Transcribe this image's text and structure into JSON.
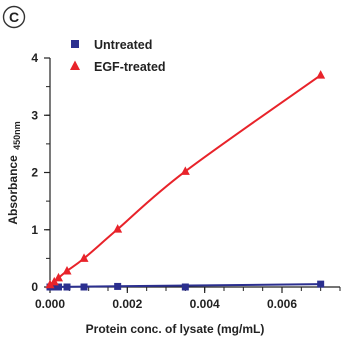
{
  "panel_label": "C",
  "chart_data": {
    "type": "line",
    "title": "",
    "xlabel": "Protein conc. of lysate (mg/mL)",
    "ylabel": "Absorbance",
    "ylabel_subscript": "450nm",
    "xlim": [
      0,
      0.0075
    ],
    "ylim": [
      0,
      4
    ],
    "xticks": [
      0,
      0.002,
      0.004,
      0.006
    ],
    "xtick_labels": [
      "0.000",
      "0.002",
      "0.004",
      "0.006"
    ],
    "yticks": [
      0,
      1,
      2,
      3,
      4
    ],
    "ytick_labels": [
      "0",
      "1",
      "2",
      "3",
      "4"
    ],
    "grid": false,
    "legend": "top-left",
    "series": [
      {
        "name": "Untreated",
        "marker": "square",
        "color": "#2b2f8f",
        "x": [
          0.0,
          0.00011,
          0.00022,
          0.00044,
          0.00088,
          0.00175,
          0.0035,
          0.007
        ],
        "y": [
          0.0,
          0.0,
          0.0,
          0.0,
          0.0,
          0.01,
          0.0,
          0.05
        ]
      },
      {
        "name": "EGF-treated",
        "marker": "triangle",
        "color": "#e8232a",
        "x": [
          0.0,
          0.00011,
          0.00022,
          0.00044,
          0.00088,
          0.00175,
          0.0035,
          0.007
        ],
        "y": [
          0.04,
          0.09,
          0.16,
          0.28,
          0.5,
          1.01,
          2.02,
          3.7
        ]
      }
    ]
  }
}
